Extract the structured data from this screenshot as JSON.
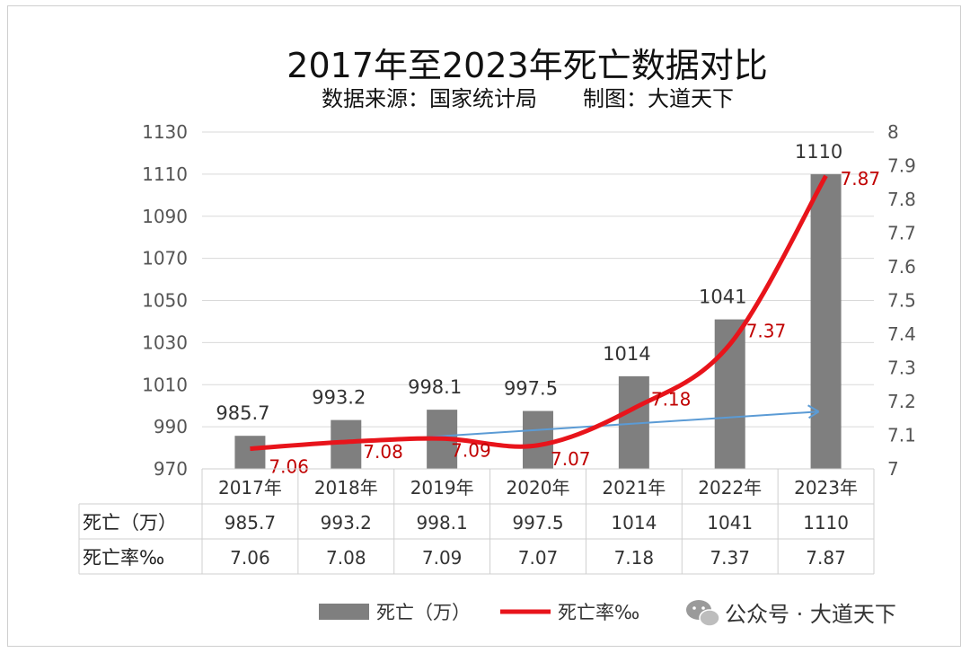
{
  "chart_data": {
    "type": "bar+line",
    "title": "2017年至2023年死亡数据对比",
    "subtitle": "数据来源：国家统计局",
    "credit": "制图：大道天下",
    "categories": [
      "2017年",
      "2018年",
      "2019年",
      "2020年",
      "2021年",
      "2022年",
      "2023年"
    ],
    "series": [
      {
        "name": "死亡（万）",
        "type": "bar",
        "axis": "left",
        "color": "#7f7f7f",
        "values": [
          985.7,
          993.2,
          998.1,
          997.5,
          1014,
          1041,
          1110
        ],
        "labels": [
          "985.7",
          "993.2",
          "998.1",
          "997.5",
          "1014",
          "1041",
          "1110"
        ]
      },
      {
        "name": "死亡率‰",
        "type": "line",
        "axis": "right",
        "color": "#e8141b",
        "values": [
          7.06,
          7.08,
          7.09,
          7.07,
          7.18,
          7.37,
          7.87
        ],
        "labels": [
          "7.06",
          "7.08",
          "7.09",
          "7.07",
          "7.18",
          "7.37",
          "7.87"
        ]
      }
    ],
    "trendline": {
      "type": "linear",
      "color": "#5b9bd5",
      "axis": "right",
      "start": 7.06,
      "end": 7.17
    },
    "y_left": {
      "lim": [
        970,
        1130
      ],
      "ticks": [
        "970",
        "990",
        "1010",
        "1030",
        "1050",
        "1070",
        "1090",
        "1110",
        "1130"
      ]
    },
    "y_right": {
      "lim": [
        7,
        8
      ],
      "ticks": [
        "7",
        "7.1",
        "7.2",
        "7.3",
        "7.4",
        "7.5",
        "7.6",
        "7.7",
        "7.8",
        "7.9",
        "8"
      ]
    },
    "gridlines": true,
    "data_table": {
      "rows": [
        {
          "head": "死亡（万）",
          "cells": [
            "985.7",
            "993.2",
            "998.1",
            "997.5",
            "1014",
            "1041",
            "1110"
          ]
        },
        {
          "head": "死亡率‰",
          "cells": [
            "7.06",
            "7.08",
            "7.09",
            "7.07",
            "7.18",
            "7.37",
            "7.87"
          ]
        }
      ]
    },
    "legend_position": "bottom"
  },
  "watermark": {
    "text": "公众号 · 大道天下",
    "icon": "wechat-icon"
  }
}
